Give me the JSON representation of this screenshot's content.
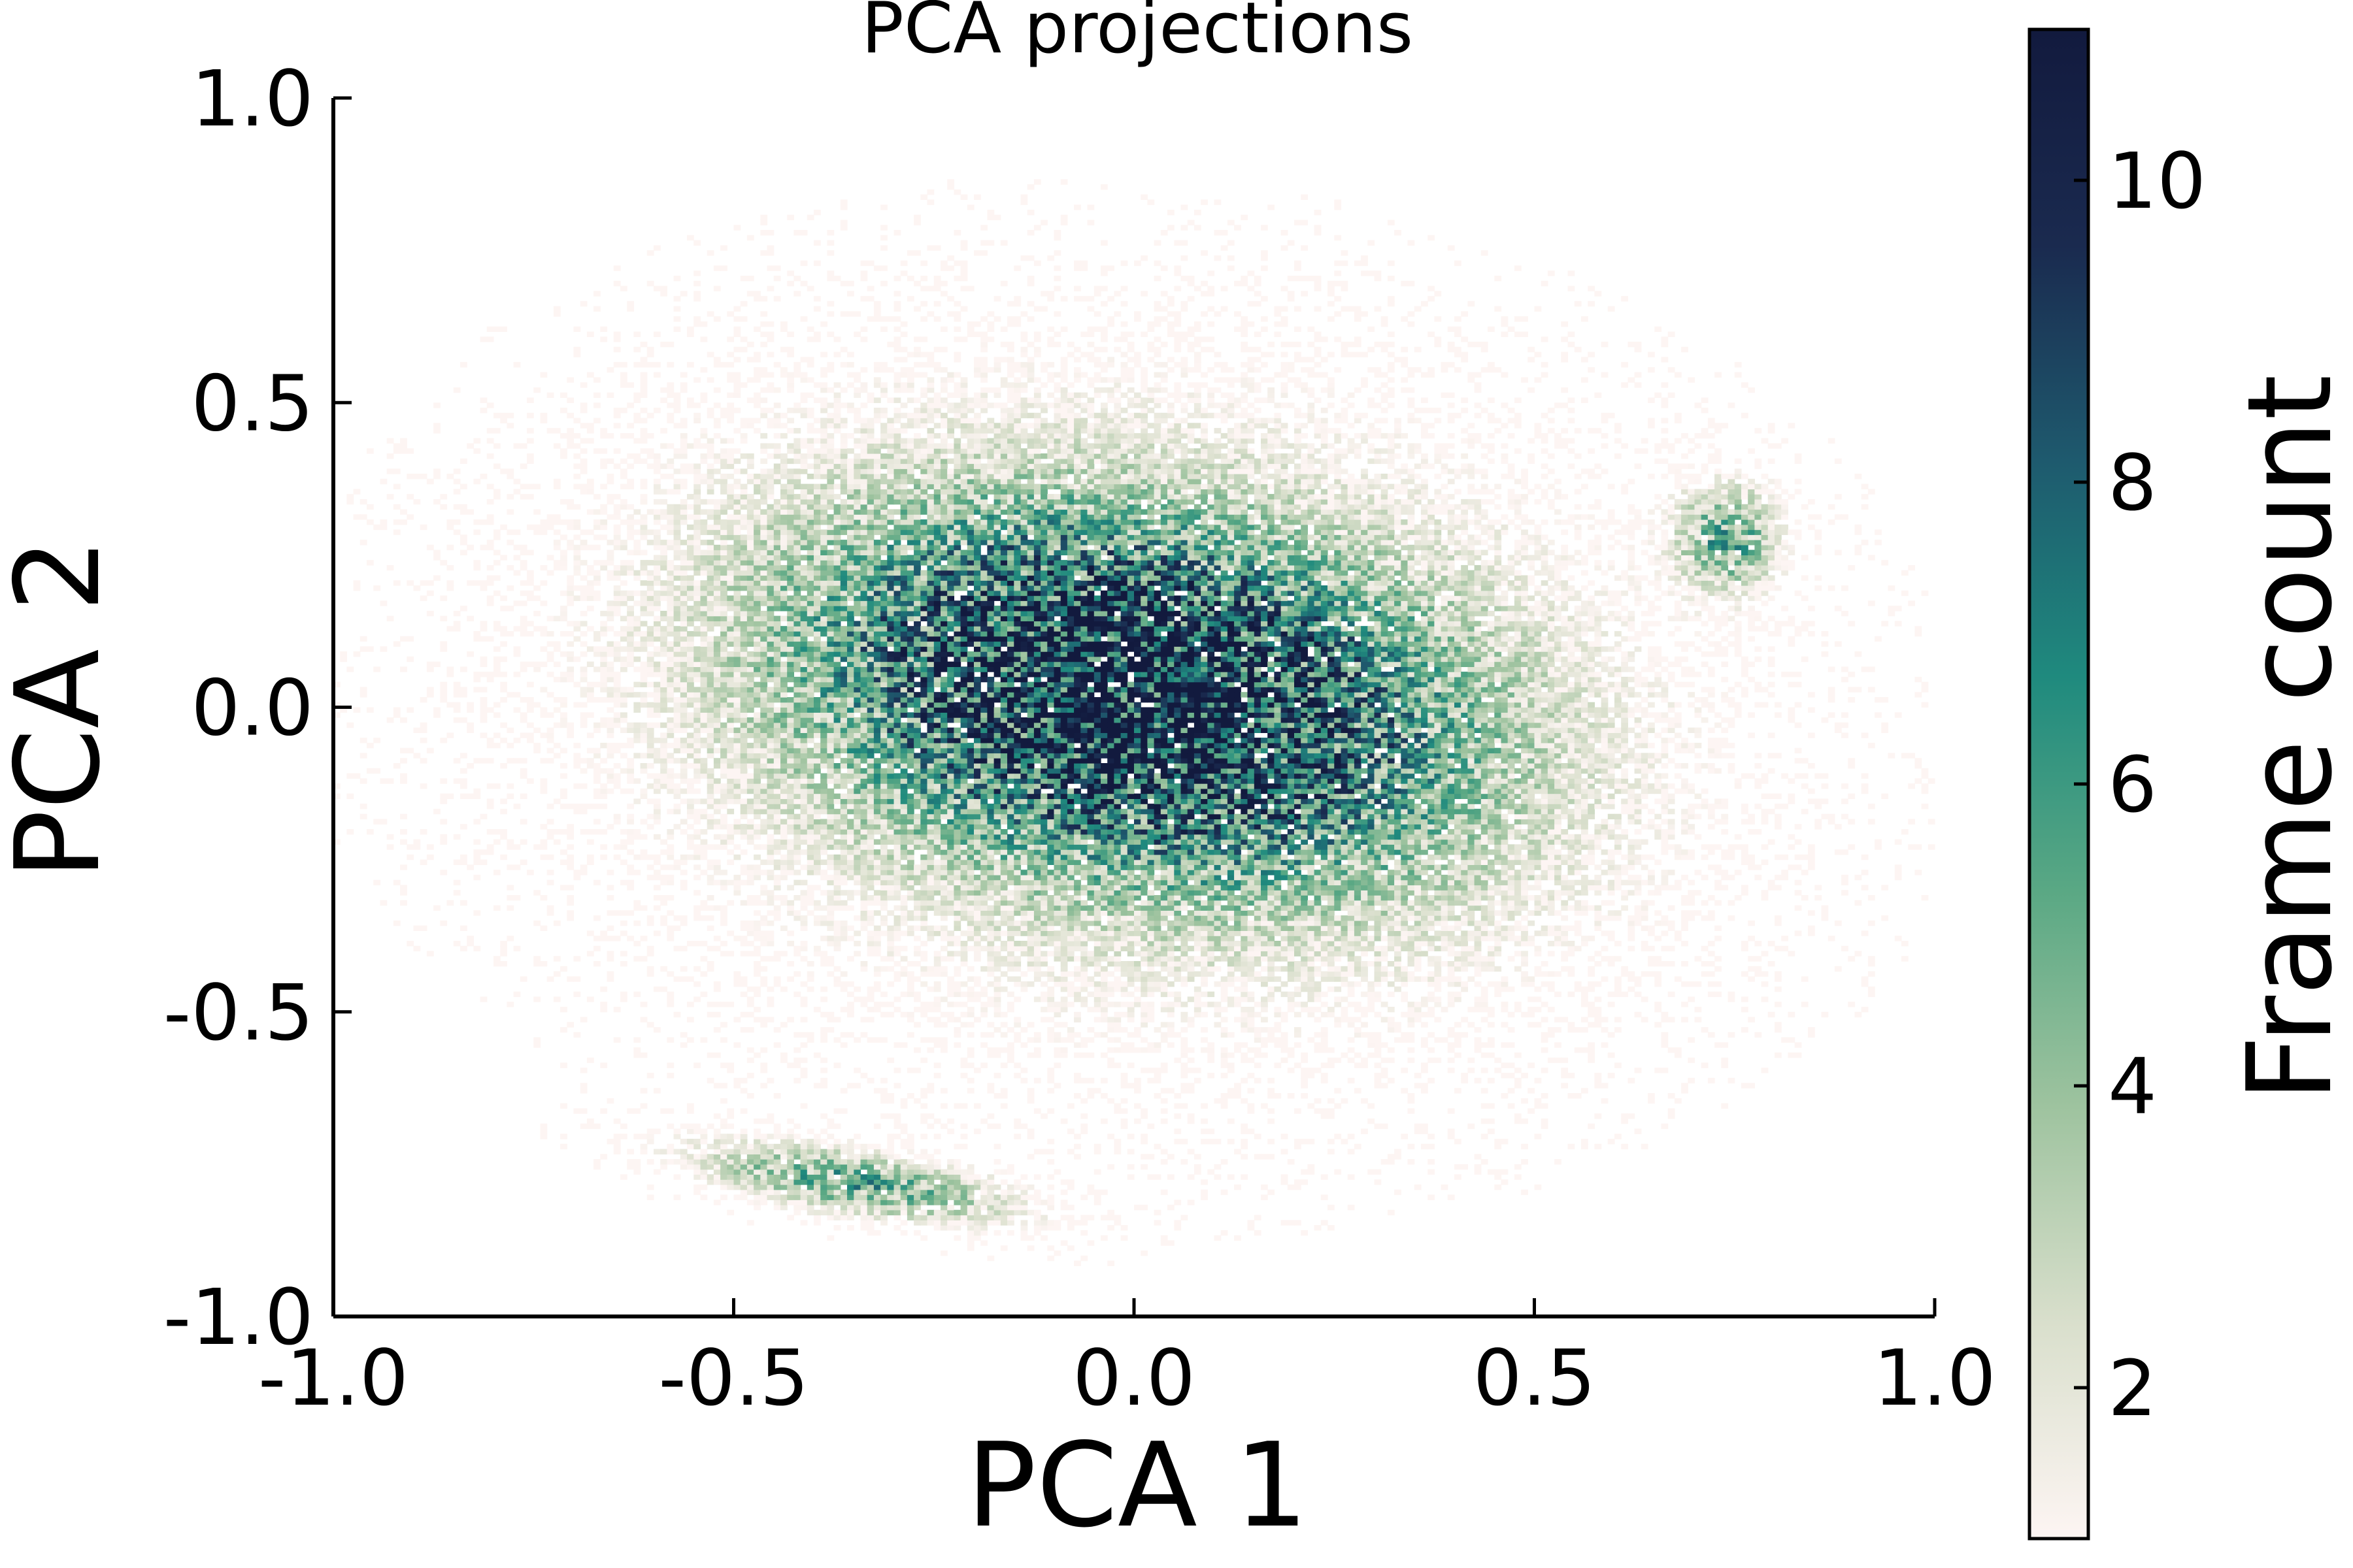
{
  "chart_data": {
    "type": "heatmap",
    "title": "PCA projections",
    "xlabel": "PCA 1",
    "ylabel": "PCA 2",
    "xlim": [
      -1.0,
      1.0
    ],
    "ylim": [
      -1.0,
      1.0
    ],
    "x_ticks": [
      -1.0,
      -0.5,
      0.0,
      0.5,
      1.0
    ],
    "y_ticks": [
      -1.0,
      -0.5,
      0.0,
      0.5,
      1.0
    ],
    "x_tick_labels": [
      "-1.0",
      "-0.5",
      "0.0",
      "0.5",
      "1.0"
    ],
    "y_tick_labels": [
      "-1.0",
      "-0.5",
      "0.0",
      "0.5",
      "1.0"
    ],
    "grid": false,
    "colorbar": {
      "label": "Frame count",
      "range": [
        1,
        11
      ],
      "ticks": [
        2,
        4,
        6,
        8,
        10
      ],
      "tick_labels": [
        "2",
        "4",
        "6",
        "8",
        "10"
      ],
      "colormap": [
        "#fdf5f3",
        "#d9dfcc",
        "#9ec39f",
        "#5aa884",
        "#1f8a7e",
        "#1e5a6e",
        "#1a2a4f",
        "#121a3e"
      ]
    },
    "clusters": [
      {
        "name_hint": "main",
        "center": [
          0.0,
          0.02
        ],
        "spread": [
          0.33,
          0.22
        ],
        "rotation_deg": -20,
        "peak": 10,
        "share": 0.72
      },
      {
        "name_hint": "upper-right",
        "center": [
          0.74,
          0.28
        ],
        "spread": [
          0.05,
          0.07
        ],
        "rotation_deg": 0,
        "peak": 5,
        "share": 0.05
      },
      {
        "name_hint": "lower-arc",
        "center": [
          -0.35,
          -0.78
        ],
        "spread": [
          0.16,
          0.04
        ],
        "rotation_deg": -12,
        "peak": 5,
        "share": 0.08
      },
      {
        "name_hint": "faint-halo",
        "center": [
          0.0,
          0.0
        ],
        "spread": [
          0.55,
          0.45
        ],
        "rotation_deg": -10,
        "peak": 2,
        "share": 0.15
      }
    ],
    "bins": 240
  }
}
